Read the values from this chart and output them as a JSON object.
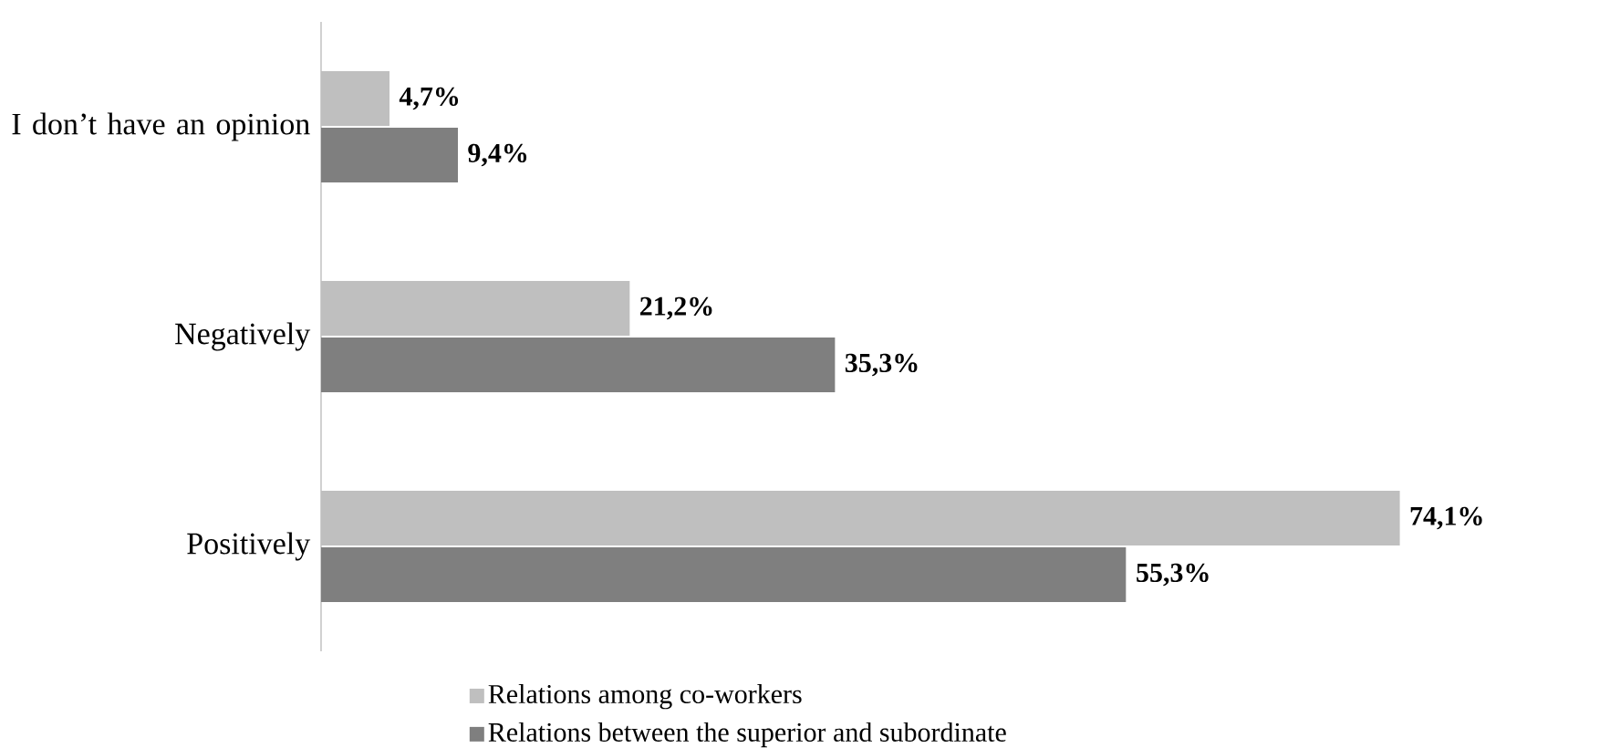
{
  "chart_data": {
    "type": "bar",
    "orientation": "horizontal",
    "categories": [
      "I don’t have an opinion",
      "Negatively",
      "Positively"
    ],
    "series": [
      {
        "name": "Relations among co-workers",
        "color": "#bfbfbf",
        "values": [
          4.7,
          21.2,
          74.1
        ],
        "value_labels": [
          "4,7%",
          "21,2%",
          "74,1%"
        ]
      },
      {
        "name": "Relations between the superior and subordinate",
        "color": "#7f7f7f",
        "values": [
          9.4,
          35.3,
          55.3
        ],
        "value_labels": [
          "9,4%",
          "35,3%",
          "55,3%"
        ]
      }
    ],
    "tick_labels": "y",
    "legend": "bottom"
  }
}
